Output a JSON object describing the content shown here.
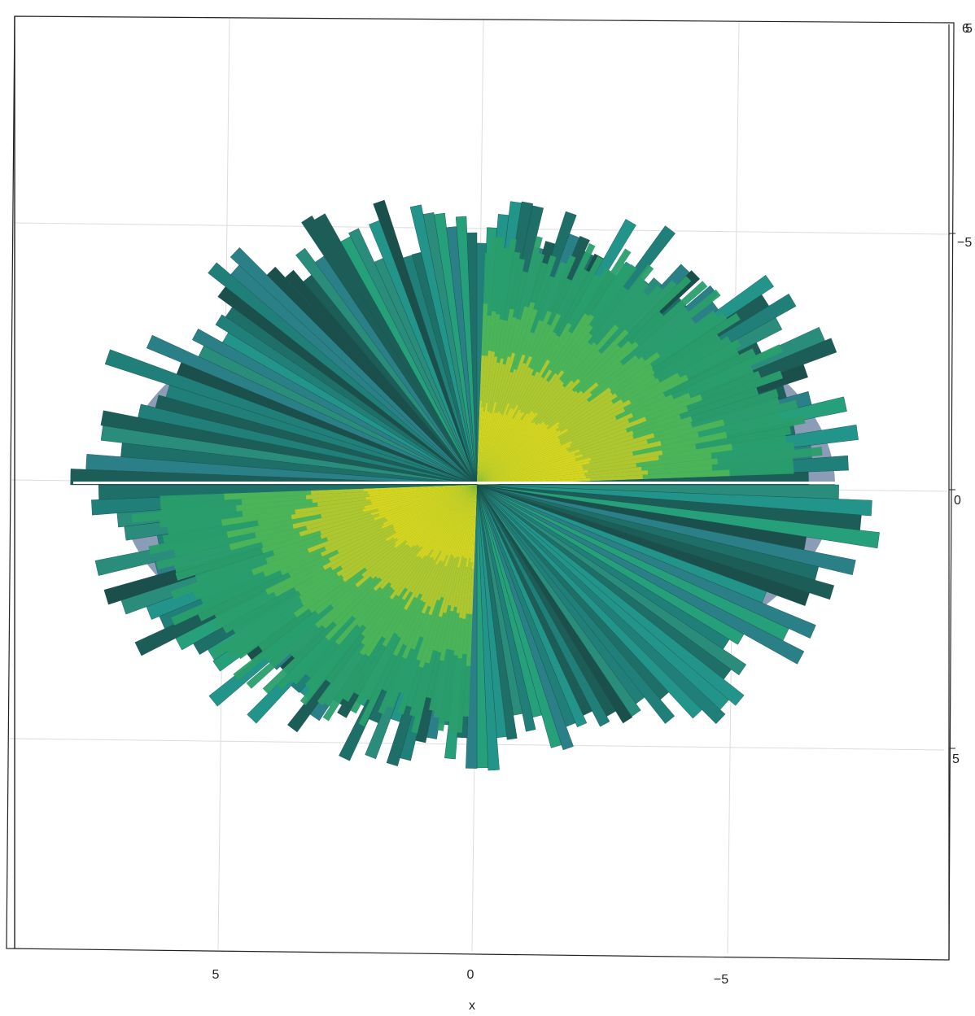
{
  "chart_data": {
    "type": "surface",
    "view": "3D surface viewed from above",
    "xlabel": "x",
    "x_ticks": [
      {
        "value": 5,
        "label": "5"
      },
      {
        "value": 0,
        "label": "0"
      },
      {
        "value": -5,
        "label": "−5"
      }
    ],
    "y_ticks": [
      {
        "value": -5,
        "label": "−5"
      },
      {
        "value": 0,
        "label": "0"
      },
      {
        "value": 5,
        "label": "5"
      }
    ],
    "corner_labels": [
      "6",
      "5"
    ],
    "xlim": [
      10,
      -9
    ],
    "ylim": [
      -9.2,
      9.0
    ],
    "grid": true,
    "colormap": "viridis",
    "colors": {
      "dark": "#1d5a56",
      "teal": "#21807a",
      "green": "#2aa96b",
      "yellow": "#d6d41f",
      "deep_blue": "#2a3f78"
    }
  }
}
